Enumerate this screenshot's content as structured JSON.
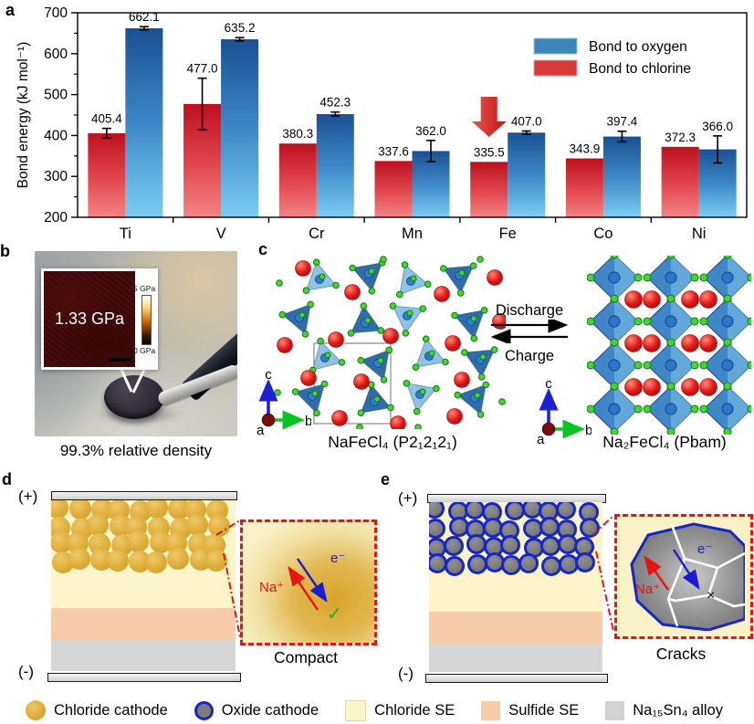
{
  "figure": {
    "panel_labels": {
      "a": "a",
      "b": "b",
      "c": "c",
      "d": "d",
      "e": "e"
    }
  },
  "chart_data": {
    "type": "bar",
    "title": "",
    "xlabel": "",
    "ylabel": "Bond energy (kJ mol⁻¹)",
    "ylim": [
      200,
      700
    ],
    "ytick_step": 100,
    "ytick_minor_step": 50,
    "grid": false,
    "legend_position": "top-right",
    "categories": [
      "Ti",
      "V",
      "Cr",
      "Mn",
      "Fe",
      "Co",
      "Ni"
    ],
    "series": [
      {
        "name": "Bond to chlorine",
        "color": "#d63b3a",
        "values": [
          405.4,
          477.0,
          380.3,
          337.6,
          335.5,
          343.9,
          372.3
        ],
        "errors": [
          12,
          63,
          0,
          0,
          0,
          0,
          0
        ]
      },
      {
        "name": "Bond to oxygen",
        "color": "#3c86ba",
        "values": [
          662.1,
          635.2,
          452.3,
          362.0,
          407.0,
          397.4,
          366.0
        ],
        "errors": [
          4,
          4,
          5,
          26,
          4,
          13,
          33
        ]
      }
    ],
    "legend": [
      {
        "label": "Bond to oxygen",
        "color": "#3c86ba"
      },
      {
        "label": "Bond to chlorine",
        "color": "#d63b3a"
      }
    ],
    "annotation": {
      "type": "down-arrow",
      "color": "#d5302a",
      "category": "Fe",
      "series": "Bond to chlorine"
    }
  },
  "panel_b": {
    "inset_value": "1.33 GPa",
    "colorbar_max": "5 GPa",
    "colorbar_min": "0 GPa",
    "caption": "99.3% relative density"
  },
  "panel_c": {
    "left_caption": "NaFeCl₄ (P2₁2₁2₁)",
    "right_caption": "Na₂FeCl₄ (Pbam)",
    "forward_label": "Discharge",
    "backward_label": "Charge",
    "axes": {
      "a": "a",
      "b": "b",
      "c": "c"
    }
  },
  "panel_d": {
    "positive": "(+)",
    "negative": "(-)",
    "inset_caption": "Compact",
    "ion_label": "Na⁺",
    "electron_label": "e⁻",
    "ok_mark": "✓"
  },
  "panel_e": {
    "positive": "(+)",
    "negative": "(-)",
    "inset_caption": "Cracks",
    "ion_label": "Na⁺",
    "electron_label": "e⁻",
    "fail_mark": "×"
  },
  "bottom_legend": {
    "items": [
      {
        "label": "Chloride cathode",
        "type": "circle",
        "color": "#ddab33"
      },
      {
        "label": "Oxide cathode",
        "type": "circle-outlined",
        "color": "#7b7b7b",
        "border": "#1726c8"
      },
      {
        "label": "Chloride SE",
        "type": "square",
        "color": "#fbf5c9"
      },
      {
        "label": "Sulfide SE",
        "type": "square",
        "color": "#f7cda9"
      },
      {
        "label": "Na₁₅Sn₄ alloy",
        "type": "square",
        "color": "#d2d2d2"
      }
    ]
  }
}
